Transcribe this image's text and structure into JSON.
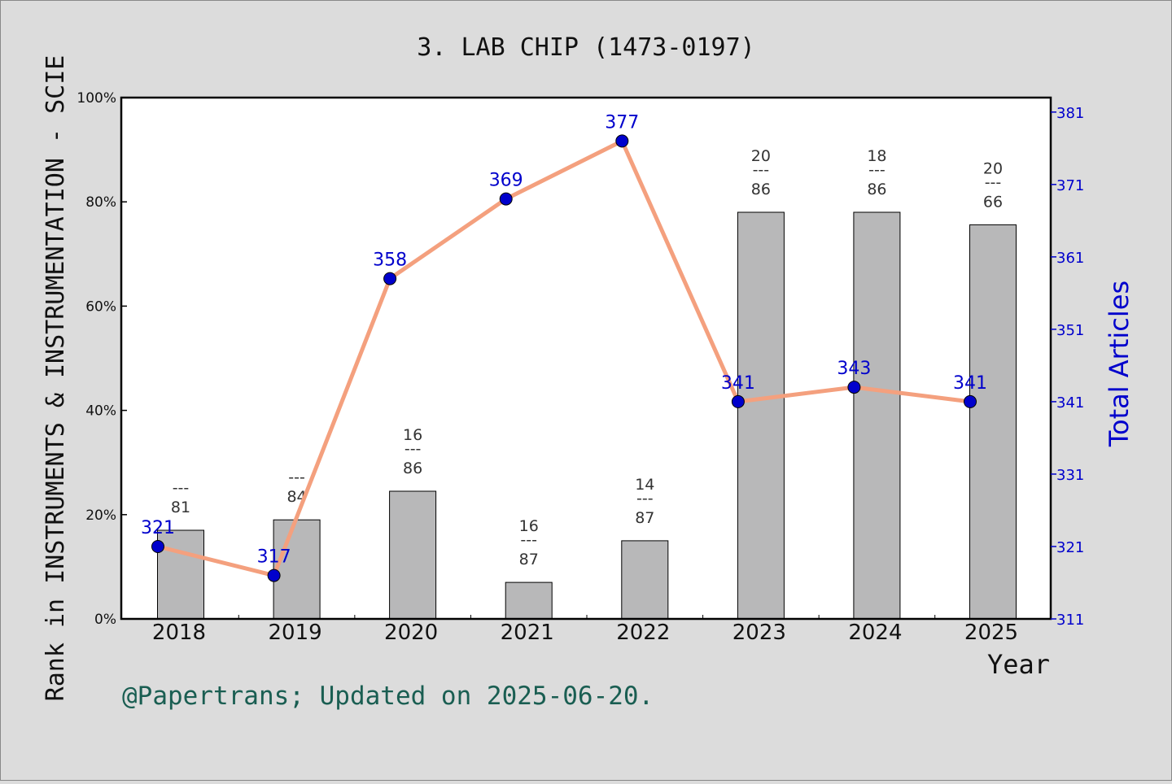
{
  "chart_data": {
    "type": "bar",
    "title": "3. LAB CHIP (1473-0197)",
    "xlabel": "Year",
    "ylabel": "Rank in INSTRUMENTS & INSTRUMENTATION - SCIE",
    "y2label": "Total Articles",
    "footer": "@Papertrans; Updated on 2025-06-20.",
    "categories": [
      "2018",
      "2019",
      "2020",
      "2021",
      "2022",
      "2023",
      "2024",
      "2025"
    ],
    "ylim": [
      0,
      100
    ],
    "y_ticks": [
      "0%",
      "20%",
      "40%",
      "60%",
      "80%",
      "100%"
    ],
    "y2lim": [
      311,
      383
    ],
    "y2_ticks": [
      "311",
      "321",
      "331",
      "341",
      "351",
      "361",
      "371",
      "381"
    ],
    "grid": false,
    "series": [
      {
        "kind": "bar",
        "values": [
          17,
          19,
          24.5,
          7,
          15,
          78,
          78,
          75.6
        ],
        "rank_top": [
          "",
          "",
          "16",
          "16",
          "14",
          "20",
          "18",
          "20"
        ],
        "rank_sep": "---",
        "rank_bottom": [
          "81",
          "84",
          "86",
          "87",
          "87",
          "86",
          "86",
          "66"
        ],
        "color": "#b8b8b9"
      },
      {
        "kind": "line",
        "axis": "right",
        "values": [
          321,
          317,
          358,
          369,
          377,
          341,
          343,
          341
        ],
        "labels": [
          "321",
          "317",
          "358",
          "369",
          "377",
          "341",
          "343",
          "341"
        ],
        "line_color": "#f4a07e",
        "marker_color": "#0000cc"
      }
    ],
    "colors": {
      "background": "#dcdcdc",
      "plot_bg": "#ffffff",
      "right_axis": "#0000cc",
      "footer": "#1a5e52"
    }
  }
}
